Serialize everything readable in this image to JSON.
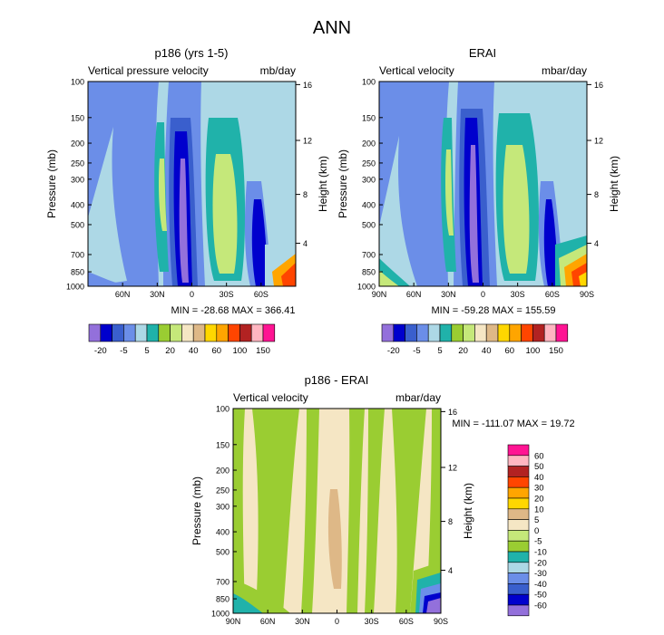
{
  "figure_title": "ANN",
  "chart_data": [
    {
      "type": "heatmap",
      "id": "test",
      "title": "p186 (yrs 1-5)",
      "left_label": "Vertical pressure velocity",
      "right_label": "mb/day",
      "ylabel": "Pressure (mb)",
      "ylabel_right": "Height (km)",
      "y_ticks": [
        "100",
        "150",
        "200",
        "250",
        "300",
        "400",
        "500",
        "700",
        "850",
        "1000"
      ],
      "height_ticks": [
        "16",
        "12",
        "8",
        "4"
      ],
      "x_ticks": [
        "60N",
        "30N",
        "0",
        "30S",
        "60S"
      ],
      "min_max": "MIN = -28.68  MAX = 366.41",
      "xlim": [
        90,
        -90
      ],
      "ylim": [
        1000,
        100
      ]
    },
    {
      "type": "heatmap",
      "id": "reference",
      "title": "ERAI",
      "left_label": "Vertical velocity",
      "right_label": "mbar/day",
      "ylabel": "Pressure (mb)",
      "ylabel_right": "Height (km)",
      "y_ticks": [
        "100",
        "150",
        "200",
        "250",
        "300",
        "400",
        "500",
        "700",
        "850",
        "1000"
      ],
      "height_ticks": [
        "16",
        "12",
        "8",
        "4"
      ],
      "x_ticks": [
        "90N",
        "60N",
        "30N",
        "0",
        "30S",
        "60S",
        "90S"
      ],
      "min_max": "MIN = -59.28  MAX = 155.59",
      "xlim": [
        90,
        -90
      ],
      "ylim": [
        1000,
        100
      ]
    },
    {
      "type": "heatmap",
      "id": "difference",
      "title": "p186 - ERAI",
      "left_label": "Vertical velocity",
      "right_label": "mbar/day",
      "ylabel": "Pressure (mb)",
      "ylabel_right": "Height (km)",
      "y_ticks": [
        "100",
        "150",
        "200",
        "250",
        "300",
        "400",
        "500",
        "700",
        "850",
        "1000"
      ],
      "height_ticks": [
        "16",
        "12",
        "8",
        "4"
      ],
      "x_ticks": [
        "90N",
        "60N",
        "30N",
        "0",
        "30S",
        "60S",
        "90S"
      ],
      "min_max": "MIN = -111.07  MAX =  19.72",
      "xlim": [
        90,
        -90
      ],
      "ylim": [
        1000,
        100
      ]
    }
  ],
  "colorbar_main": {
    "labels": [
      "-20",
      "-5",
      "5",
      "20",
      "40",
      "60",
      "100",
      "150"
    ],
    "colors": [
      "#9370db",
      "#0000cd",
      "#3a5fcd",
      "#6b8ee8",
      "#add8e6",
      "#20b2aa",
      "#9acd32",
      "#c5e87a",
      "#f5e6c4",
      "#deb887",
      "#ffd700",
      "#ffa500",
      "#ff4500",
      "#b22222",
      "#ffb6c1",
      "#ff1493"
    ]
  },
  "colorbar_diff": {
    "labels": [
      "60",
      "50",
      "40",
      "30",
      "20",
      "10",
      "5",
      "0",
      "-5",
      "-10",
      "-20",
      "-30",
      "-40",
      "-50",
      "-60"
    ],
    "colors": [
      "#ff1493",
      "#ffb6c1",
      "#b22222",
      "#ff4500",
      "#ffa500",
      "#ffd700",
      "#deb887",
      "#f5e6c4",
      "#c5e87a",
      "#9acd32",
      "#20b2aa",
      "#add8e6",
      "#6b8ee8",
      "#3a5fcd",
      "#0000cd",
      "#9370db"
    ]
  }
}
